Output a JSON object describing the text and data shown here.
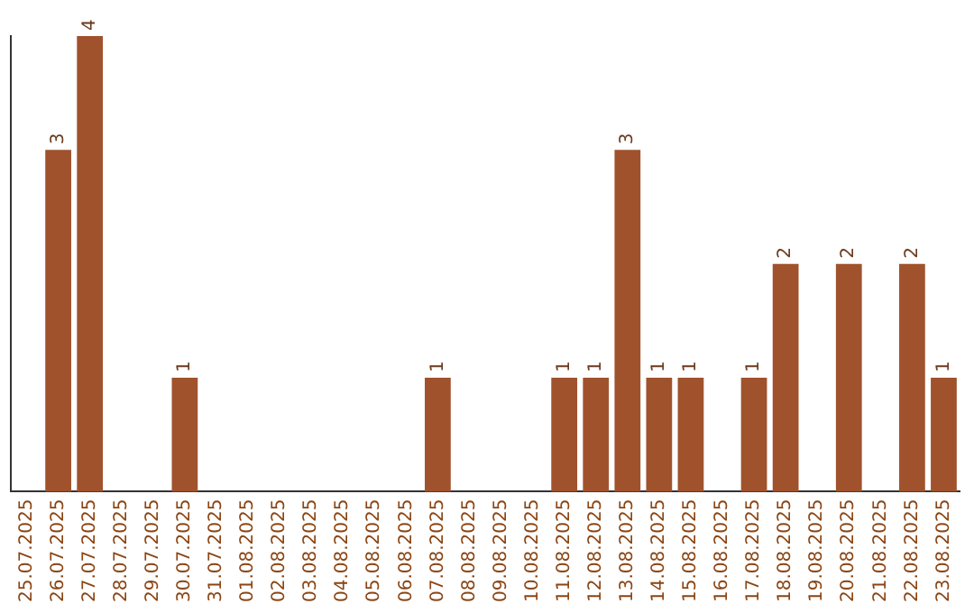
{
  "chart_data": {
    "type": "bar",
    "categories": [
      "25.07.2025",
      "26.07.2025",
      "27.07.2025",
      "28.07.2025",
      "29.07.2025",
      "30.07.2025",
      "31.07.2025",
      "01.08.2025",
      "02.08.2025",
      "03.08.2025",
      "04.08.2025",
      "05.08.2025",
      "06.08.2025",
      "07.08.2025",
      "08.08.2025",
      "09.08.2025",
      "10.08.2025",
      "11.08.2025",
      "12.08.2025",
      "13.08.2025",
      "14.08.2025",
      "15.08.2025",
      "16.08.2025",
      "17.08.2025",
      "18.08.2025",
      "19.08.2025",
      "20.08.2025",
      "21.08.2025",
      "22.08.2025",
      "23.08.2025"
    ],
    "values": [
      0,
      3,
      4,
      0,
      0,
      1,
      0,
      0,
      0,
      0,
      0,
      0,
      0,
      1,
      0,
      0,
      0,
      1,
      1,
      3,
      1,
      1,
      0,
      1,
      2,
      0,
      2,
      0,
      2,
      1
    ],
    "value_labels": [
      null,
      "3",
      "4",
      null,
      null,
      "1",
      null,
      null,
      null,
      null,
      null,
      null,
      null,
      "1",
      null,
      null,
      null,
      "1",
      "1",
      "3",
      "1",
      "1",
      null,
      "1",
      "2",
      null,
      "2",
      null,
      "2",
      "1"
    ],
    "color": "#a0522d",
    "ylim": [
      0,
      4
    ],
    "tick_labels": "x",
    "grid": false,
    "legend": false
  }
}
